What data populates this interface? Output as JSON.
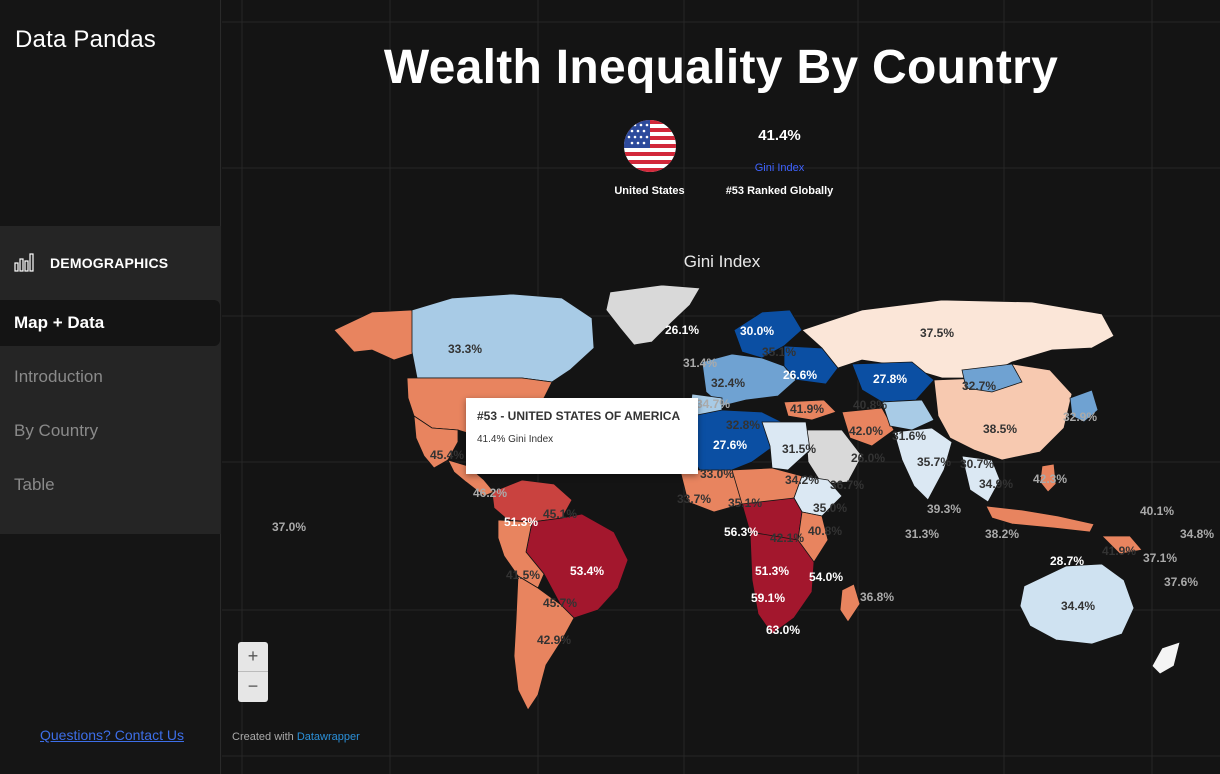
{
  "sidebar": {
    "brand": "Data Pandas",
    "section": {
      "label": "DEMOGRAPHICS",
      "icon": "bar-chart-icon"
    },
    "items": [
      {
        "label": "Map + Data",
        "active": true
      },
      {
        "label": "Introduction",
        "active": false
      },
      {
        "label": "By Country",
        "active": false
      },
      {
        "label": "Table",
        "active": false
      }
    ],
    "contact": "Questions? Contact Us"
  },
  "header": {
    "title": "Wealth Inequality By Country",
    "country": "United States",
    "flag_icon": "us-flag-icon",
    "value": "41.4%",
    "value_label": "Gini Index",
    "rank": "#53 Ranked Globally"
  },
  "map": {
    "title": "Gini Index",
    "labels": [
      "33.3%",
      "26.1%",
      "30.0%",
      "37.5%",
      "31.4%",
      "35.1%",
      "32.4%",
      "26.6%",
      "27.8%",
      "32.7%",
      "34.7%",
      "41.9%",
      "40.8%",
      "32.9%",
      "32.8%",
      "42.0%",
      "31.6%",
      "38.5%",
      "27.6%",
      "31.5%",
      "26.0%",
      "35.7%",
      "30.7%",
      "45.4%",
      "33.0%",
      "34.9%",
      "42.3%",
      "46.2%",
      "34.2%",
      "36.7%",
      "33.7%",
      "35.1%",
      "35.0%",
      "39.3%",
      "40.1%",
      "37.0%",
      "51.3%",
      "45.1%",
      "56.3%",
      "42.1%",
      "40.8%",
      "31.3%",
      "38.2%",
      "34.8%",
      "41.9%",
      "37.1%",
      "53.4%",
      "28.7%",
      "41.5%",
      "51.3%",
      "54.0%",
      "37.6%",
      "59.1%",
      "36.8%",
      "45.7%",
      "63.0%",
      "34.4%",
      "42.9%"
    ],
    "colors": {
      "low": "#0b4fa3",
      "mid_low": "#a8cbe6",
      "neutral": "#f4f4f4",
      "mid_high": "#e8845f",
      "high": "#a3172d",
      "no_data": "#d9d9d9"
    }
  },
  "tooltip": {
    "title": "#53 - UNITED STATES OF AMERICA",
    "body": "41.4% Gini Index"
  },
  "zoom": {
    "in": "+",
    "out": "−"
  },
  "credit": {
    "text": "Created with ",
    "link": "Datawrapper"
  }
}
